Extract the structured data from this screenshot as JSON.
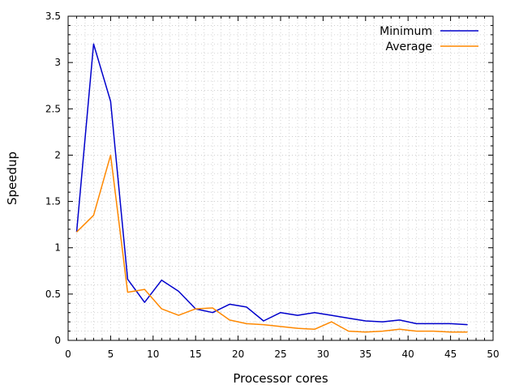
{
  "chart_data": {
    "type": "line",
    "title": "",
    "xlabel": "Processor cores",
    "ylabel": "Speedup",
    "xlim": [
      0,
      50
    ],
    "ylim": [
      0,
      3.5
    ],
    "xticks": [
      0,
      5,
      10,
      15,
      20,
      25,
      30,
      35,
      40,
      45,
      50
    ],
    "yticks": [
      0,
      0.5,
      1,
      1.5,
      2,
      2.5,
      3,
      3.5
    ],
    "xtick_labels": [
      "0",
      "5",
      "10",
      "15",
      "20",
      "25",
      "30",
      "35",
      "40",
      "45",
      "50"
    ],
    "ytick_labels": [
      "0",
      "0.5",
      "1",
      "1.5",
      "2",
      "2.5",
      "3",
      "3.5"
    ],
    "grid": true,
    "legend_position": "top-right",
    "series": [
      {
        "name": "Minimum",
        "color": "#0000cc",
        "x": [
          1,
          3,
          5,
          7,
          9,
          11,
          13,
          15,
          17,
          19,
          21,
          23,
          25,
          27,
          29,
          31,
          33,
          35,
          37,
          39,
          41,
          43,
          45,
          47
        ],
        "y": [
          1.17,
          3.2,
          2.58,
          0.66,
          0.41,
          0.65,
          0.53,
          0.34,
          0.3,
          0.39,
          0.36,
          0.21,
          0.3,
          0.27,
          0.3,
          0.27,
          0.24,
          0.21,
          0.2,
          0.22,
          0.18,
          0.18,
          0.18,
          0.17
        ]
      },
      {
        "name": "Average",
        "color": "#ff8800",
        "x": [
          1,
          3,
          5,
          7,
          9,
          11,
          13,
          15,
          17,
          19,
          21,
          23,
          25,
          27,
          29,
          31,
          33,
          35,
          37,
          39,
          41,
          43,
          45,
          47
        ],
        "y": [
          1.17,
          1.35,
          2.0,
          0.52,
          0.55,
          0.34,
          0.27,
          0.34,
          0.35,
          0.22,
          0.18,
          0.17,
          0.15,
          0.13,
          0.12,
          0.2,
          0.1,
          0.09,
          0.1,
          0.12,
          0.1,
          0.1,
          0.09,
          0.09
        ]
      }
    ]
  }
}
